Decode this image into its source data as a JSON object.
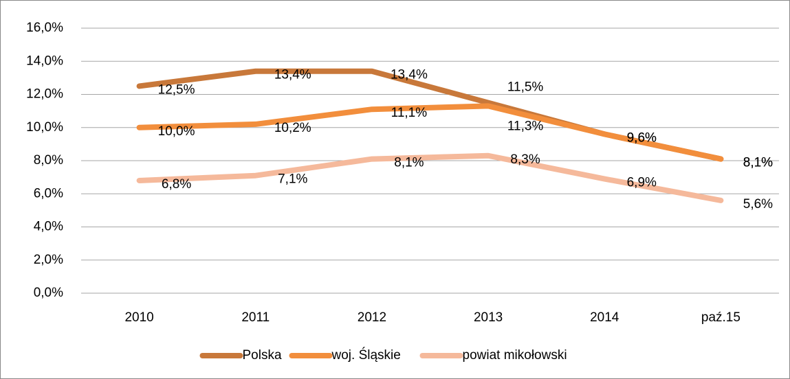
{
  "chart_data": {
    "type": "line",
    "categories": [
      "2010",
      "2011",
      "2012",
      "2013",
      "2014",
      "paź.15"
    ],
    "series": [
      {
        "name": "Polska",
        "color": "#c8783a",
        "values": [
          12.5,
          13.4,
          13.4,
          11.5,
          9.6,
          8.1
        ],
        "value_labels": [
          "12,5%",
          "13,4%",
          "13,4%",
          "11,5%",
          "9,6%",
          "8,1%"
        ]
      },
      {
        "name": "woj. Śląskie",
        "color": "#f28e3c",
        "values": [
          10.0,
          10.2,
          11.1,
          11.3,
          9.6,
          8.1
        ],
        "value_labels": [
          "10,0%",
          "10,2%",
          "11,1%",
          "11,3%",
          "9,6%",
          "8,1%"
        ]
      },
      {
        "name": "powiat mikołowski",
        "color": "#f5b99b",
        "values": [
          6.8,
          7.1,
          8.1,
          8.3,
          6.9,
          5.6
        ],
        "value_labels": [
          "6,8%",
          "7,1%",
          "8,1%",
          "8,3%",
          "6,9%",
          "5,6%"
        ]
      }
    ],
    "ylim": [
      0,
      16
    ],
    "yticks": [
      {
        "value": 0,
        "label": "0,0%"
      },
      {
        "value": 2,
        "label": "2,0%"
      },
      {
        "value": 4,
        "label": "4,0%"
      },
      {
        "value": 6,
        "label": "6,0%"
      },
      {
        "value": 8,
        "label": "8,0%"
      },
      {
        "value": 10,
        "label": "10,0%"
      },
      {
        "value": 12,
        "label": "12,0%"
      },
      {
        "value": 14,
        "label": "14,0%"
      },
      {
        "value": 16,
        "label": "16,0%"
      }
    ],
    "grid": true,
    "legend": "bottom"
  }
}
